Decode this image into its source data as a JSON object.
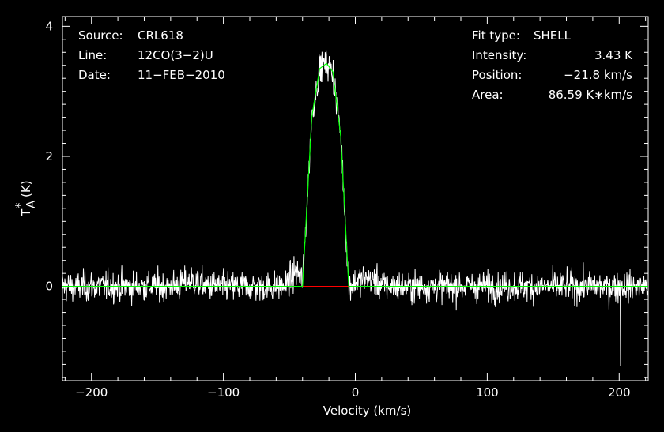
{
  "chart_data": {
    "type": "line",
    "xlabel": "Velocity (km/s)",
    "ylabel_main": "T",
    "ylabel_sup": "*",
    "ylabel_sub": "A",
    "ylabel_unit": "(K)",
    "xlim": [
      -222,
      222
    ],
    "ylim": [
      -1.45,
      4.15
    ],
    "xticks": [
      -200,
      -100,
      0,
      100,
      200
    ],
    "xtick_labels": [
      "−200",
      "−100",
      "0",
      "100",
      "200"
    ],
    "yticks": [
      0,
      2,
      4
    ],
    "ytick_labels": [
      "0",
      "2",
      "4"
    ],
    "grid": false,
    "info_left": [
      {
        "key": "Source:",
        "value": "CRL618"
      },
      {
        "key": "Line:",
        "value": "12CO(3−2)U"
      },
      {
        "key": "Date:",
        "value": "11−FEB−2010"
      }
    ],
    "info_right": [
      {
        "key": "Fit type:",
        "value": "SHELL"
      },
      {
        "key": "Intensity:",
        "value": "3.43 K"
      },
      {
        "key": "Position:",
        "value": "−21.8 km/s"
      },
      {
        "key": "Area:",
        "value": "86.59 K∗km/s"
      }
    ],
    "colors": {
      "spectrum": "#ffffff",
      "fit": "#00ff00",
      "window": "#ff0000",
      "frame": "#ffffff"
    },
    "spectrum_noise_rms": 0.22,
    "wing_bumps": [
      {
        "center": -124,
        "halfwidth": 8,
        "amp": 0.08
      },
      {
        "center": -45,
        "halfwidth": 5,
        "amp": 0.22
      },
      {
        "center": 8,
        "halfwidth": 10,
        "amp": 0.12
      }
    ],
    "spikes": [
      {
        "x": 201,
        "y": -1.22
      }
    ],
    "fit": {
      "type": "SHELL",
      "intensity": 3.43,
      "position": -21.8,
      "points_x": [
        -222,
        -40,
        -33,
        -27,
        -21.8,
        -17,
        -11,
        -5,
        222
      ],
      "points_y": [
        0,
        0,
        2.6,
        3.35,
        3.43,
        3.3,
        2.3,
        0,
        0
      ]
    },
    "window_segment": {
      "x": [
        -40,
        -5
      ],
      "y": 0
    }
  }
}
